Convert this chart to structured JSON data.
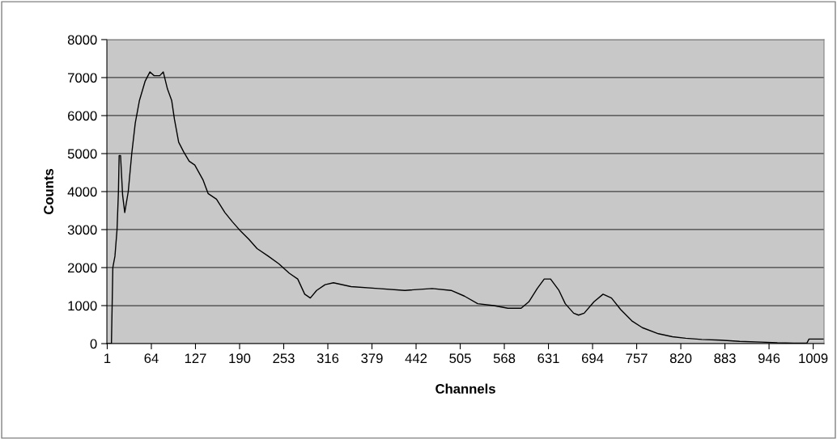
{
  "chart_data": {
    "type": "line",
    "xlabel": "Channels",
    "ylabel": "Counts",
    "x": [
      1,
      7,
      9,
      12,
      15,
      17,
      18,
      20,
      21,
      23,
      26,
      31,
      36,
      41,
      47,
      55,
      62,
      68,
      76,
      81,
      87,
      93,
      97,
      103,
      110,
      118,
      126,
      138,
      145,
      157,
      169,
      180,
      192,
      203,
      215,
      231,
      246,
      261,
      273,
      283,
      291,
      300,
      312,
      324,
      349,
      388,
      426,
      465,
      492,
      511,
      530,
      553,
      573,
      592,
      603,
      615,
      625,
      634,
      646,
      655,
      667,
      674,
      682,
      696,
      709,
      721,
      734,
      750,
      765,
      788,
      808,
      827,
      850,
      877,
      904,
      935,
      958,
      981,
      1000,
      1003,
      1024
    ],
    "series": [
      {
        "color": "#000000",
        "values": [
          0,
          0,
          2000,
          2300,
          3000,
          4000,
          4950,
          4950,
          4600,
          3900,
          3450,
          4000,
          5000,
          5800,
          6400,
          6900,
          7150,
          7050,
          7050,
          7150,
          6700,
          6400,
          5900,
          5300,
          5050,
          4800,
          4700,
          4300,
          3950,
          3800,
          3450,
          3200,
          2950,
          2750,
          2500,
          2300,
          2100,
          1850,
          1700,
          1300,
          1200,
          1400,
          1550,
          1600,
          1500,
          1450,
          1400,
          1450,
          1400,
          1250,
          1050,
          1000,
          930,
          930,
          1100,
          1450,
          1700,
          1700,
          1400,
          1050,
          800,
          750,
          800,
          1100,
          1300,
          1200,
          900,
          600,
          420,
          260,
          180,
          140,
          110,
          90,
          60,
          40,
          20,
          10,
          10,
          120,
          120
        ]
      }
    ],
    "xlim": [
      0.5,
      1024.5
    ],
    "xticks": [
      1,
      64,
      127,
      190,
      253,
      316,
      379,
      442,
      505,
      568,
      631,
      694,
      757,
      820,
      883,
      946,
      1009
    ],
    "ylim": [
      0,
      8000
    ],
    "yticks": [
      0,
      1000,
      2000,
      3000,
      4000,
      5000,
      6000,
      7000,
      8000
    ],
    "grid": "y",
    "marker": "none",
    "line_style": "solid"
  }
}
